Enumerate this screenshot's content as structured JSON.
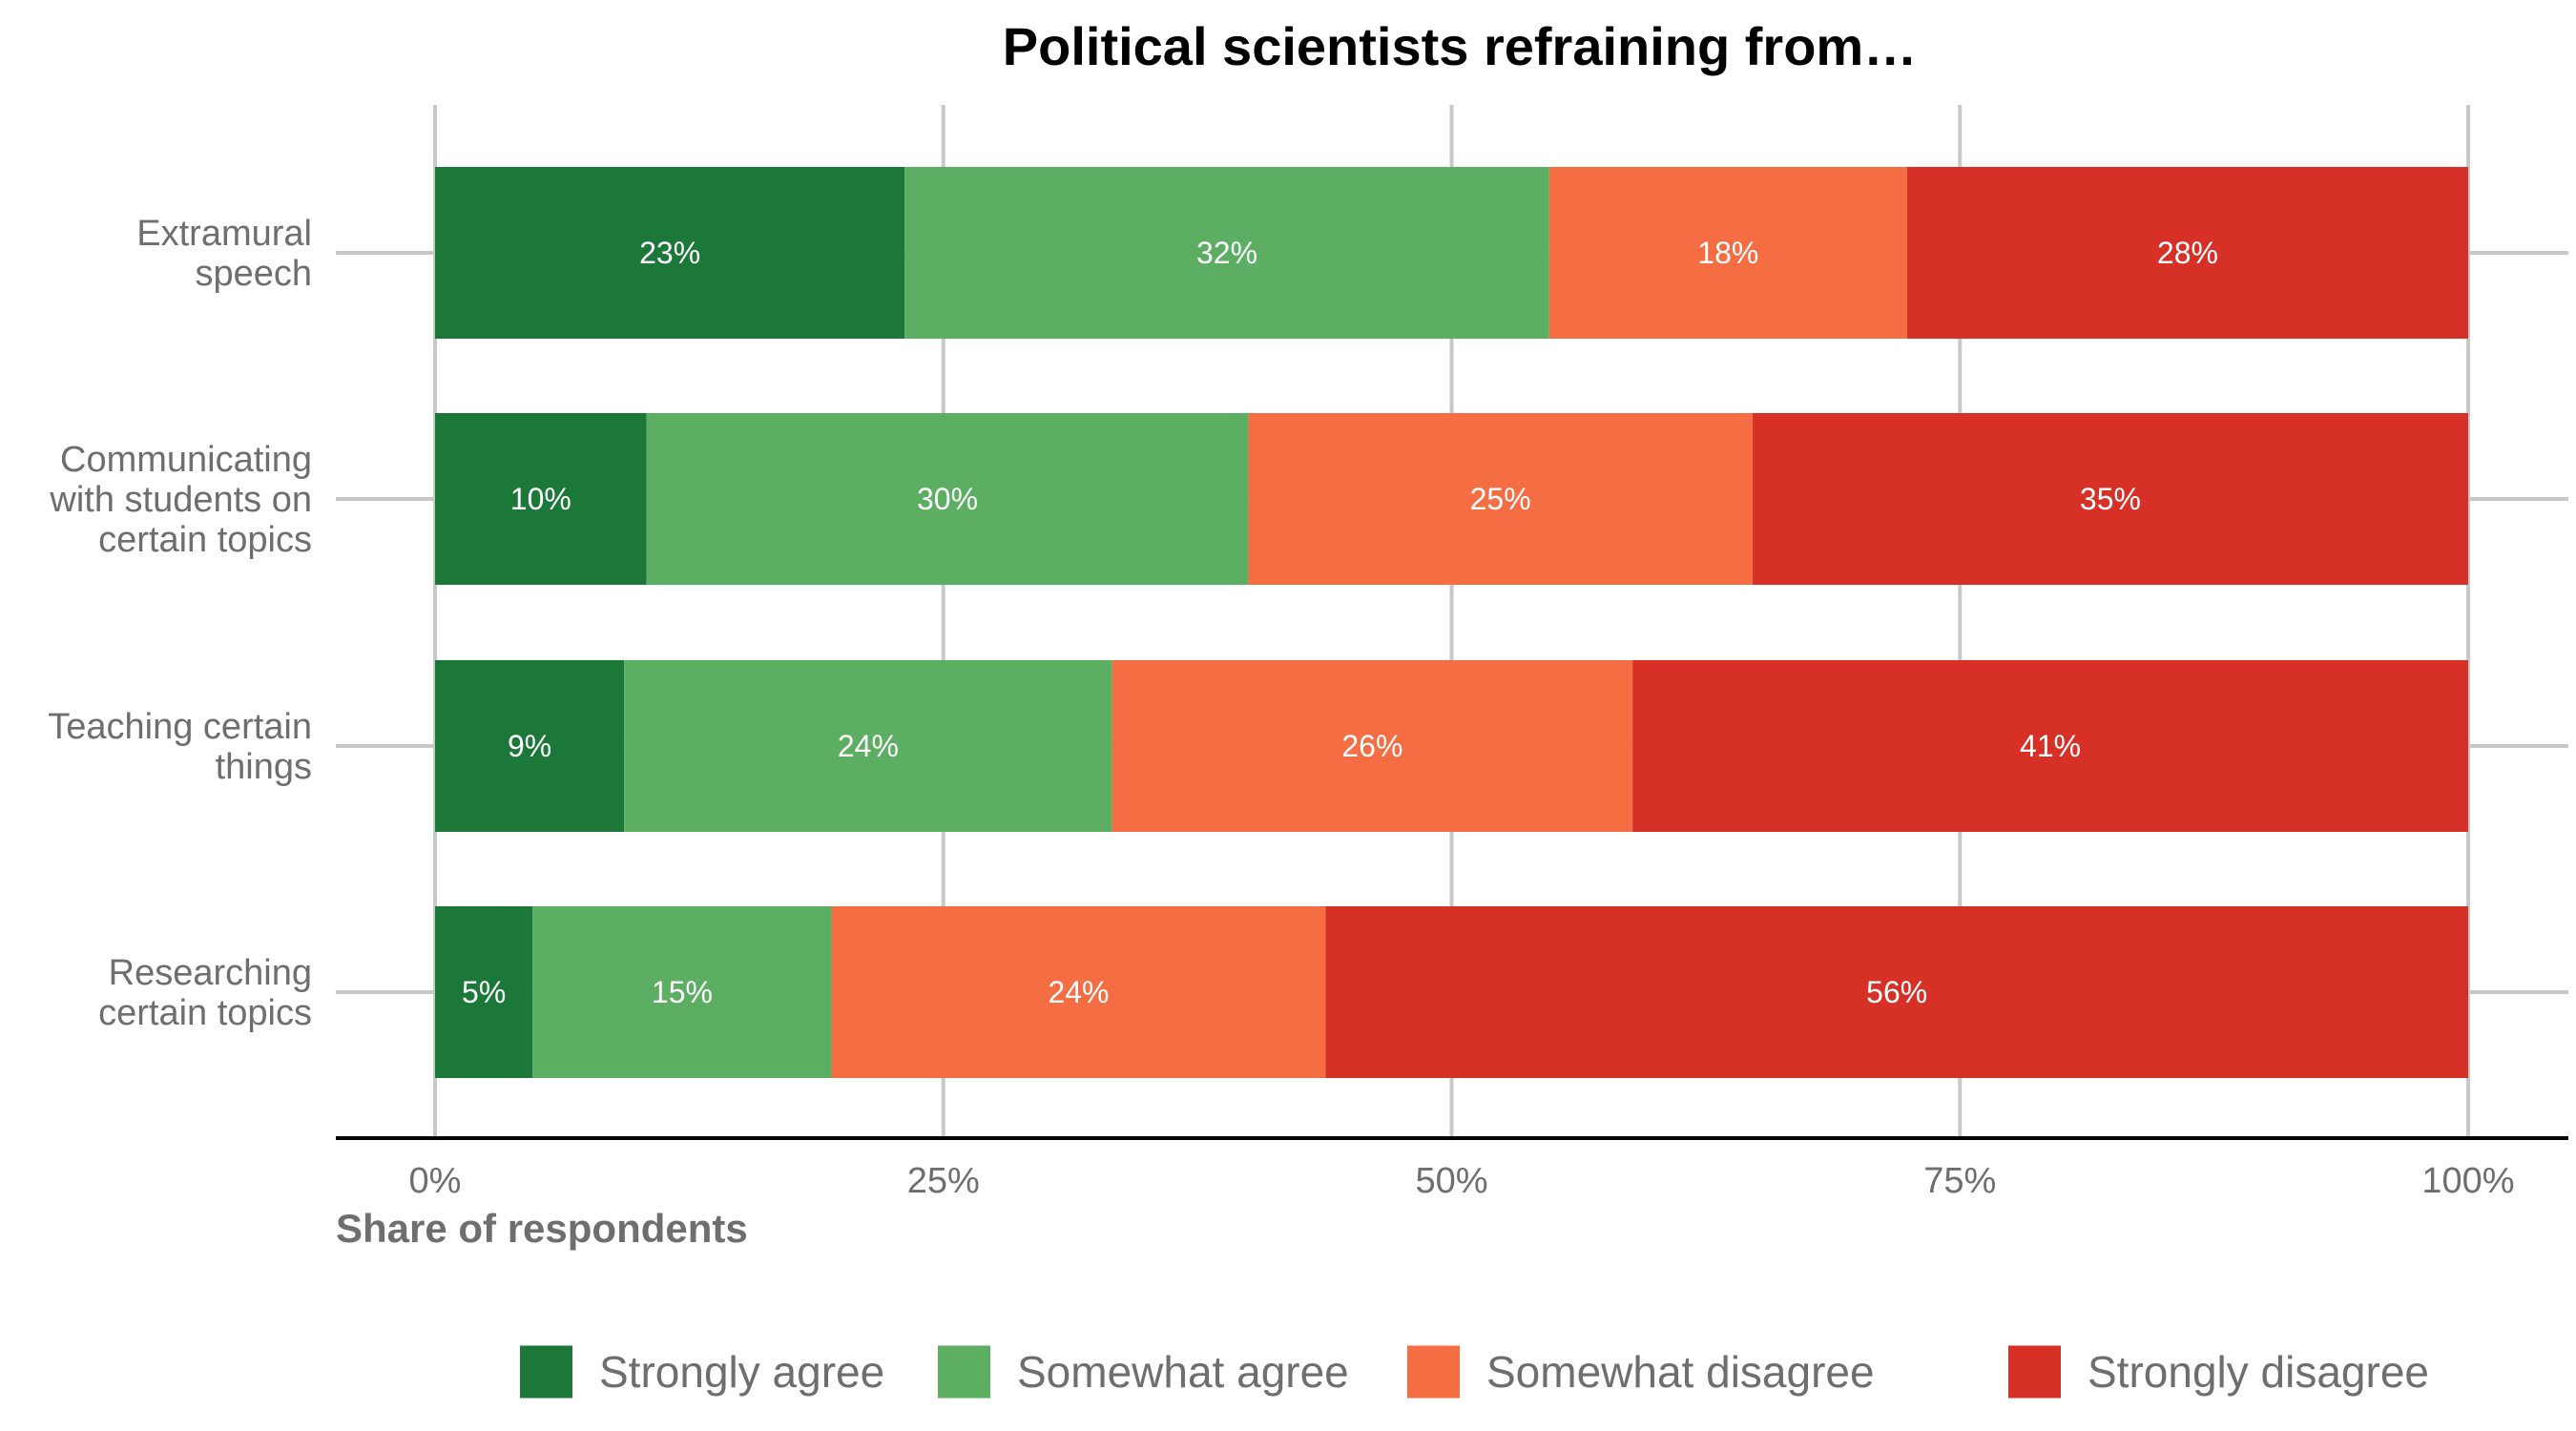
{
  "chart_data": {
    "type": "bar",
    "orientation": "horizontal",
    "stacked": true,
    "title": "Political scientists refraining from…",
    "xlabel": "Share of respondents",
    "ylabel": "",
    "xlim": [
      0,
      100
    ],
    "x_ticks": [
      "0%",
      "25%",
      "50%",
      "75%",
      "100%"
    ],
    "x_tick_values": [
      0,
      25,
      50,
      75,
      100
    ],
    "grid": true,
    "legend_position": "bottom",
    "categories": [
      [
        "Extramural",
        "speech"
      ],
      [
        "Communicating",
        "with students on",
        "certain topics"
      ],
      [
        "Teaching certain",
        "things"
      ],
      [
        "Researching",
        "certain topics"
      ]
    ],
    "series": [
      {
        "name": "Strongly agree",
        "color": "#1b7839",
        "values": [
          23.1,
          10.4,
          9.3,
          4.8
        ],
        "labels": [
          "23%",
          "10%",
          "9%",
          "5%"
        ]
      },
      {
        "name": "Somewhat agree",
        "color": "#5bae62",
        "values": [
          31.7,
          29.6,
          24.0,
          14.7
        ],
        "labels": [
          "32%",
          "30%",
          "24%",
          "15%"
        ]
      },
      {
        "name": "Somewhat disagree",
        "color": "#f46d43",
        "values": [
          17.6,
          24.8,
          25.6,
          24.3
        ],
        "labels": [
          "18%",
          "25%",
          "26%",
          "24%"
        ]
      },
      {
        "name": "Strongly disagree",
        "color": "#d73027",
        "values": [
          27.6,
          35.2,
          41.1,
          56.2
        ],
        "labels": [
          "28%",
          "35%",
          "41%",
          "56%"
        ]
      }
    ]
  }
}
